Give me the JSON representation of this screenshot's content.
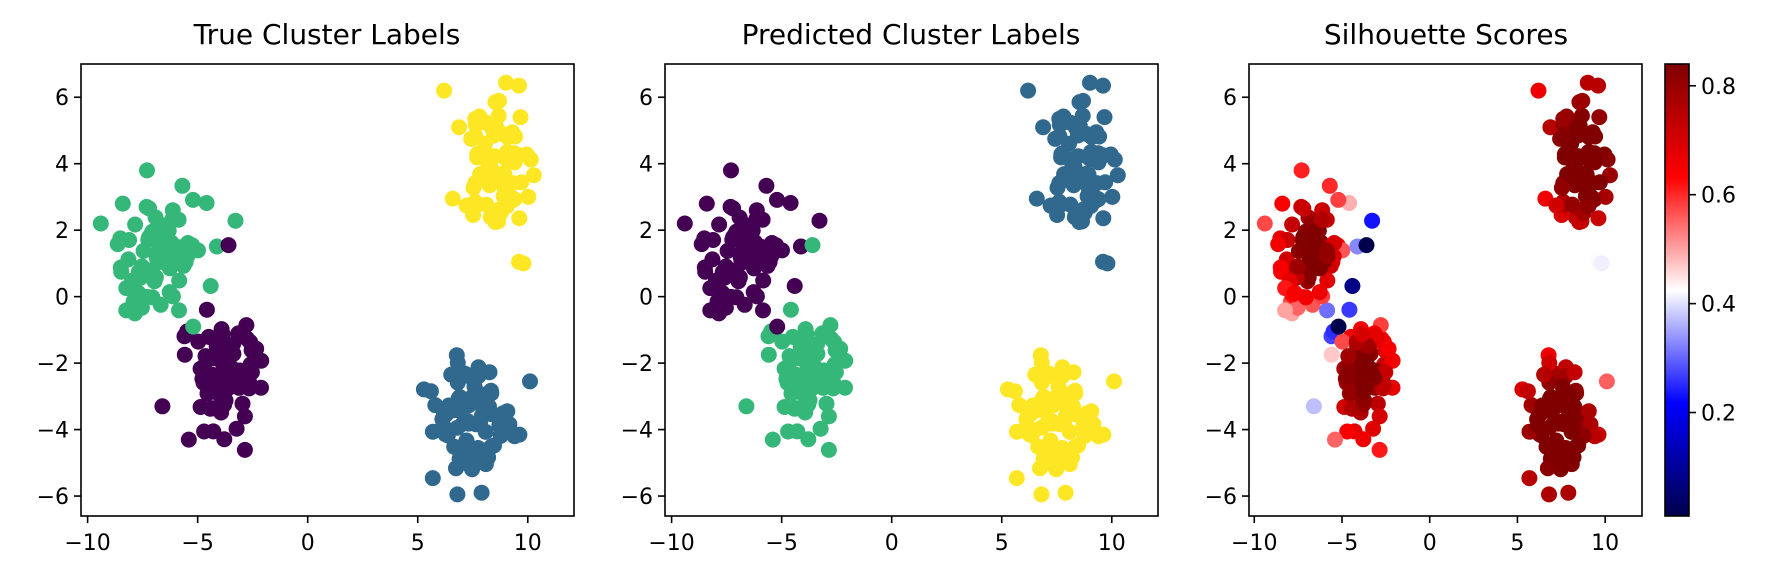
{
  "chart_data": [
    {
      "type": "scatter",
      "title": "True Cluster Labels",
      "xlim": [
        -10.3,
        12.1
      ],
      "ylim": [
        -6.6,
        7.0
      ],
      "xticks": [
        -10,
        -5,
        0,
        5,
        10
      ],
      "yticks": [
        -6,
        -4,
        -2,
        0,
        2,
        4,
        6
      ],
      "colormap": "viridis",
      "color_by": "true_label",
      "colors": {
        "0": "#440154",
        "1": "#31688e",
        "2": "#35b779",
        "3": "#fde725"
      },
      "series": [
        {
          "label": 0,
          "center": [
            -4.0,
            -2.2
          ]
        },
        {
          "label": 1,
          "center": [
            7.4,
            -3.7
          ]
        },
        {
          "label": 2,
          "center": [
            -6.6,
            1.2
          ]
        },
        {
          "label": 3,
          "center": [
            8.7,
            3.9
          ]
        }
      ]
    },
    {
      "type": "scatter",
      "title": "Predicted Cluster Labels",
      "xlim": [
        -10.3,
        12.1
      ],
      "ylim": [
        -6.6,
        7.0
      ],
      "xticks": [
        -10,
        -5,
        0,
        5,
        10
      ],
      "yticks": [
        -6,
        -4,
        -2,
        0,
        2,
        4,
        6
      ],
      "colormap": "viridis",
      "color_by": "predicted_label",
      "colors": {
        "0": "#440154",
        "1": "#31688e",
        "2": "#35b779",
        "3": "#fde725"
      }
    },
    {
      "type": "scatter",
      "title": "Silhouette Scores",
      "xlim": [
        -10.3,
        12.1
      ],
      "ylim": [
        -6.6,
        7.0
      ],
      "xticks": [
        -10,
        -5,
        0,
        5,
        10
      ],
      "yticks": [
        -6,
        -4,
        -2,
        0,
        2,
        4,
        6
      ],
      "colormap": "seismic",
      "color_by": "silhouette_score",
      "colorbar": {
        "range": [
          0.01,
          0.84
        ],
        "ticks": [
          0.2,
          0.4,
          0.6,
          0.8
        ],
        "tick_labels": [
          "0.2",
          "0.4",
          "0.6",
          "0.8"
        ]
      }
    }
  ],
  "tick_labels": {
    "x": [
      "−10",
      "−5",
      "0",
      "5",
      "10"
    ],
    "y": [
      "−6",
      "−4",
      "−2",
      "0",
      "2",
      "4",
      "6"
    ]
  }
}
